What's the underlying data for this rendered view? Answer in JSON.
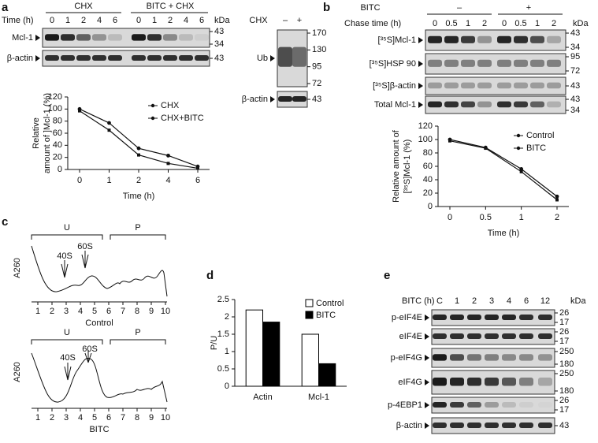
{
  "panel_labels": [
    "a",
    "b",
    "c",
    "d",
    "e"
  ],
  "blot_a": {
    "time_label": "Time (h)",
    "groups": [
      "CHX",
      "BITC + CHX"
    ],
    "lanes": [
      "0",
      "1",
      "2",
      "4",
      "6",
      "0",
      "1",
      "2",
      "4",
      "6"
    ],
    "kda": "kDa",
    "rows": [
      {
        "label": "Mcl-1",
        "markers": [
          "43",
          "34"
        ]
      },
      {
        "label": "β-actin",
        "markers": [
          "43"
        ]
      }
    ]
  },
  "blot_ub": {
    "treatment": "CHX",
    "lanes": [
      "–",
      "+"
    ],
    "rows": [
      {
        "label": "Ub",
        "markers": [
          "170",
          "130",
          "95",
          "72"
        ]
      },
      {
        "label": "β-actin",
        "markers": [
          "43"
        ]
      }
    ]
  },
  "blot_b": {
    "treatment": "BITC",
    "groups": [
      "–",
      "+"
    ],
    "time_label": "Chase time (h)",
    "lanes": [
      "0",
      "0.5",
      "1",
      "2",
      "0",
      "0.5",
      "1",
      "2"
    ],
    "kda": "kDa",
    "rows": [
      {
        "label": "[³⁵S]Mcl-1",
        "markers": [
          "43",
          "34"
        ]
      },
      {
        "label": "[³⁵S]HSP 90",
        "markers": [
          "95",
          "72"
        ]
      },
      {
        "label": "[³⁵S]β-actin",
        "markers": [
          "43"
        ]
      },
      {
        "label": "Total Mcl-1",
        "markers": [
          "43",
          "34"
        ]
      }
    ]
  },
  "blot_e": {
    "time_label": "BITC (h)",
    "lanes": [
      "C",
      "1",
      "2",
      "3",
      "4",
      "6",
      "12"
    ],
    "kda": "kDa",
    "rows": [
      {
        "label": "p-eIF4E",
        "markers": [
          "26",
          "17"
        ]
      },
      {
        "label": "eIF4E",
        "markers": [
          "26",
          "17"
        ]
      },
      {
        "label": "p-eIF4G",
        "markers": [
          "250",
          "180"
        ]
      },
      {
        "label": "eIF4G",
        "markers": [
          "250",
          "180"
        ]
      },
      {
        "label": "p-4EBP1",
        "markers": [
          "26",
          "17"
        ]
      },
      {
        "label": "β-actin",
        "markers": [
          "43"
        ]
      }
    ]
  },
  "profiles": [
    {
      "regions": [
        "U",
        "P"
      ],
      "y_label": "A260",
      "peaks": [
        "40S",
        "60S"
      ],
      "fractions": [
        "1",
        "2",
        "3",
        "4",
        "5",
        "6",
        "7",
        "8",
        "9",
        "10"
      ],
      "condition": "Control"
    },
    {
      "regions": [
        "U",
        "P"
      ],
      "y_label": "A260",
      "peaks": [
        "40S",
        "60S"
      ],
      "fractions": [
        "1",
        "2",
        "3",
        "4",
        "5",
        "6",
        "7",
        "8",
        "9",
        "10"
      ],
      "condition": "BITC"
    }
  ],
  "chart_data": [
    {
      "type": "line",
      "categories": [
        "0",
        "1",
        "2",
        "4",
        "6"
      ],
      "xlabel": "Time (h)",
      "ylabel": [
        "Relative",
        "amount of ]Mcl-1 (%)"
      ],
      "ylim": [
        0,
        120
      ],
      "yticks": [
        0,
        20,
        40,
        60,
        80,
        100,
        120
      ],
      "series": [
        {
          "name": "CHX",
          "color": "#111111",
          "values": [
            100,
            77,
            35,
            23,
            5
          ]
        },
        {
          "name": "CHX+BITC",
          "color": "#111111",
          "values": [
            97,
            65,
            24,
            10,
            2
          ]
        }
      ]
    },
    {
      "type": "line",
      "categories": [
        "0",
        "0.5",
        "1",
        "2"
      ],
      "xlabel": "Time (h)",
      "ylabel": [
        "Relative amount of",
        "[³⁵S]Mcl-1 (%)"
      ],
      "ylim": [
        0,
        120
      ],
      "yticks": [
        0,
        20,
        40,
        60,
        80,
        100,
        120
      ],
      "series": [
        {
          "name": "Control",
          "color": "#111111",
          "values": [
            100,
            88,
            56,
            15
          ]
        },
        {
          "name": "BITC",
          "color": "#111111",
          "values": [
            98,
            87,
            52,
            10
          ]
        }
      ]
    },
    {
      "type": "bar",
      "categories": [
        "Actin",
        "Mcl-1"
      ],
      "ylabel": "P/U",
      "ylim": [
        0,
        2.5
      ],
      "yticks": [
        0,
        0.5,
        1,
        1.5,
        2,
        2.5
      ],
      "series": [
        {
          "name": "Control",
          "color": "#ffffff",
          "values": [
            2.2,
            1.5
          ]
        },
        {
          "name": "BITC",
          "color": "#000000",
          "values": [
            1.85,
            0.65
          ]
        }
      ]
    }
  ]
}
